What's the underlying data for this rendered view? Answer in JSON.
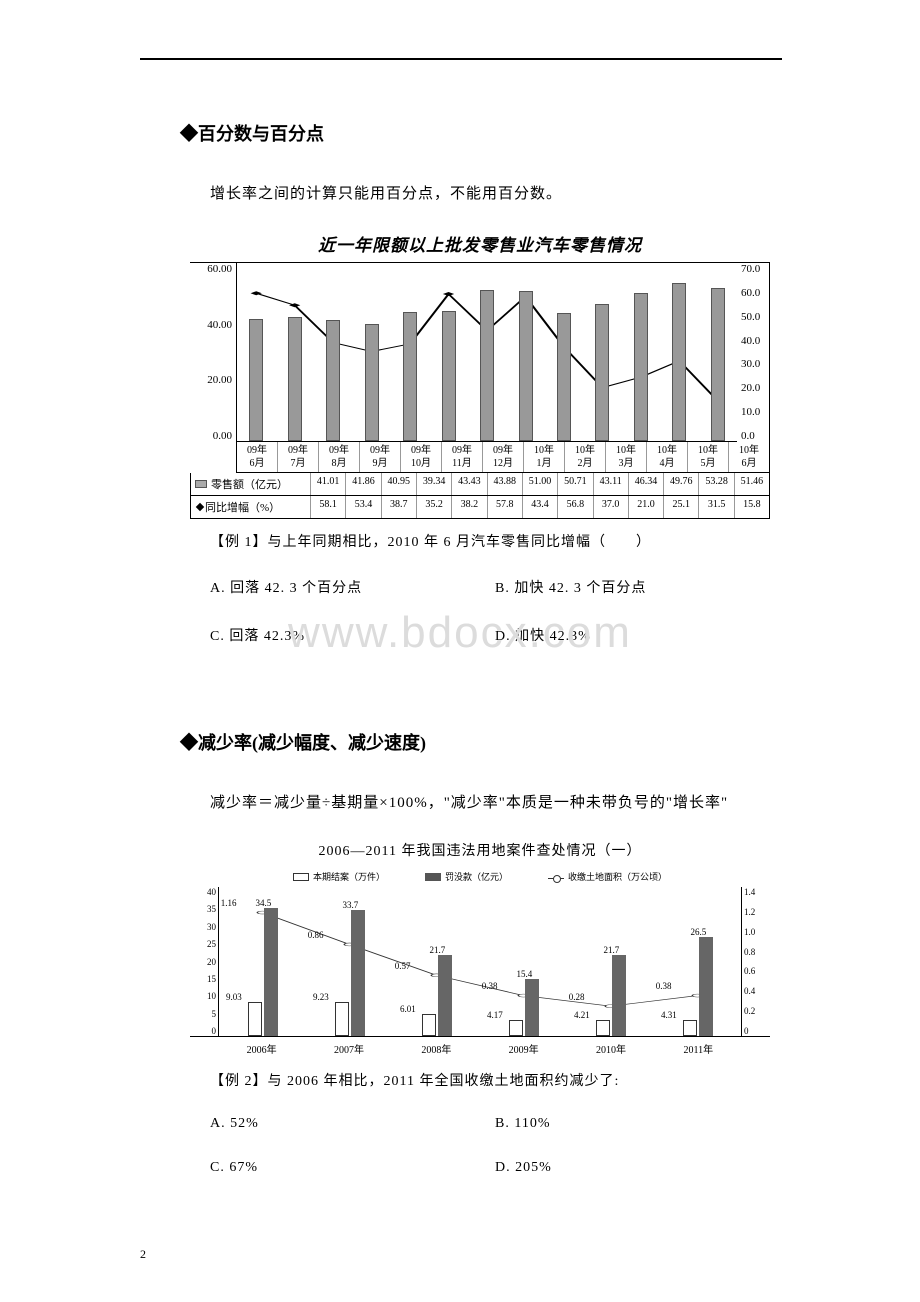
{
  "section1": {
    "title": "◆百分数与百分点",
    "sub": "增长率之间的计算只能用百分点，不能用百分数。"
  },
  "chart1": {
    "title": "近一年限额以上批发零售业汽车零售情况",
    "yleft": [
      "60.00",
      "40.00",
      "20.00",
      "0.00"
    ],
    "yright": [
      "70.0",
      "60.0",
      "50.0",
      "40.0",
      "30.0",
      "20.0",
      "10.0",
      "0.0"
    ],
    "cats": [
      "09年\n6月",
      "09年\n7月",
      "09年\n8月",
      "09年\n9月",
      "09年\n10月",
      "09年\n11月",
      "09年\n12月",
      "10年\n1月",
      "10年\n2月",
      "10年\n3月",
      "10年\n4月",
      "10年\n5月",
      "10年\n6月"
    ],
    "sales_label": "零售额（亿元）",
    "sales": [
      "41.01",
      "41.86",
      "40.95",
      "39.34",
      "43.43",
      "43.88",
      "51.00",
      "50.71",
      "43.11",
      "46.34",
      "49.76",
      "53.28",
      "51.46"
    ],
    "sales_v": [
      41.01,
      41.86,
      40.95,
      39.34,
      43.43,
      43.88,
      51.0,
      50.71,
      43.11,
      46.34,
      49.76,
      53.28,
      51.46
    ],
    "yoy_label": "同比增幅（%）",
    "yoy": [
      "58.1",
      "53.4",
      "38.7",
      "35.2",
      "38.2",
      "57.8",
      "43.4",
      "56.8",
      "37.0",
      "21.0",
      "25.1",
      "31.5",
      "15.8"
    ],
    "yoy_v": [
      58.1,
      53.4,
      38.7,
      35.2,
      38.2,
      57.8,
      43.4,
      56.8,
      37.0,
      21.0,
      25.1,
      31.5,
      15.8
    ]
  },
  "ex1": {
    "q": "【例 1】与上年同期相比，2010 年 6 月汽车零售同比增幅（　　）",
    "A": "A. 回落 42. 3 个百分点",
    "B": "B. 加快 42. 3 个百分点",
    "C": "C. 回落 42.3%",
    "D": "D. 加快 42.3%"
  },
  "watermark": "www.bdocx.com",
  "section2": {
    "title": "◆减少率(减少幅度、减少速度)",
    "sub": "减少率＝减少量÷基期量×100%，\"减少率\"本质是一种未带负号的\"增长率\""
  },
  "chart2": {
    "title": "2006—2011 年我国违法用地案件查处情况（一）",
    "legend": [
      "本期结案（万件）",
      "罚没款（亿元）",
      "收缴土地面积（万公顷）"
    ],
    "yleft": [
      "40",
      "35",
      "30",
      "25",
      "20",
      "15",
      "10",
      "5",
      "0"
    ],
    "yright": [
      "1.4",
      "1.2",
      "1.0",
      "0.8",
      "0.6",
      "0.4",
      "0.2",
      "0"
    ],
    "years": [
      "2006年",
      "2007年",
      "2008年",
      "2009年",
      "2010年",
      "2011年"
    ],
    "cases": [
      9.03,
      9.23,
      6.01,
      4.17,
      4.21,
      4.31
    ],
    "cases_lbl": [
      "9.03",
      "9.23",
      "6.01",
      "4.17",
      "4.21",
      "4.31"
    ],
    "fines": [
      34.5,
      33.7,
      21.7,
      15.4,
      21.7,
      26.5
    ],
    "fines_lbl": [
      "34.5",
      "33.7",
      "21.7",
      "15.4",
      "21.7",
      "26.5"
    ],
    "land": [
      1.16,
      0.86,
      0.57,
      0.38,
      0.28,
      0.38
    ],
    "land_lbl": [
      "1.16",
      "0.86",
      "0.57",
      "0.38",
      "0.28",
      "0.38"
    ]
  },
  "ex2": {
    "q": "【例 2】与 2006 年相比，2011 年全国收缴土地面积约减少了:",
    "A": "A. 52%",
    "B": "B. 110%",
    "C": "C. 67%",
    "D": "D. 205%"
  },
  "page": "2"
}
